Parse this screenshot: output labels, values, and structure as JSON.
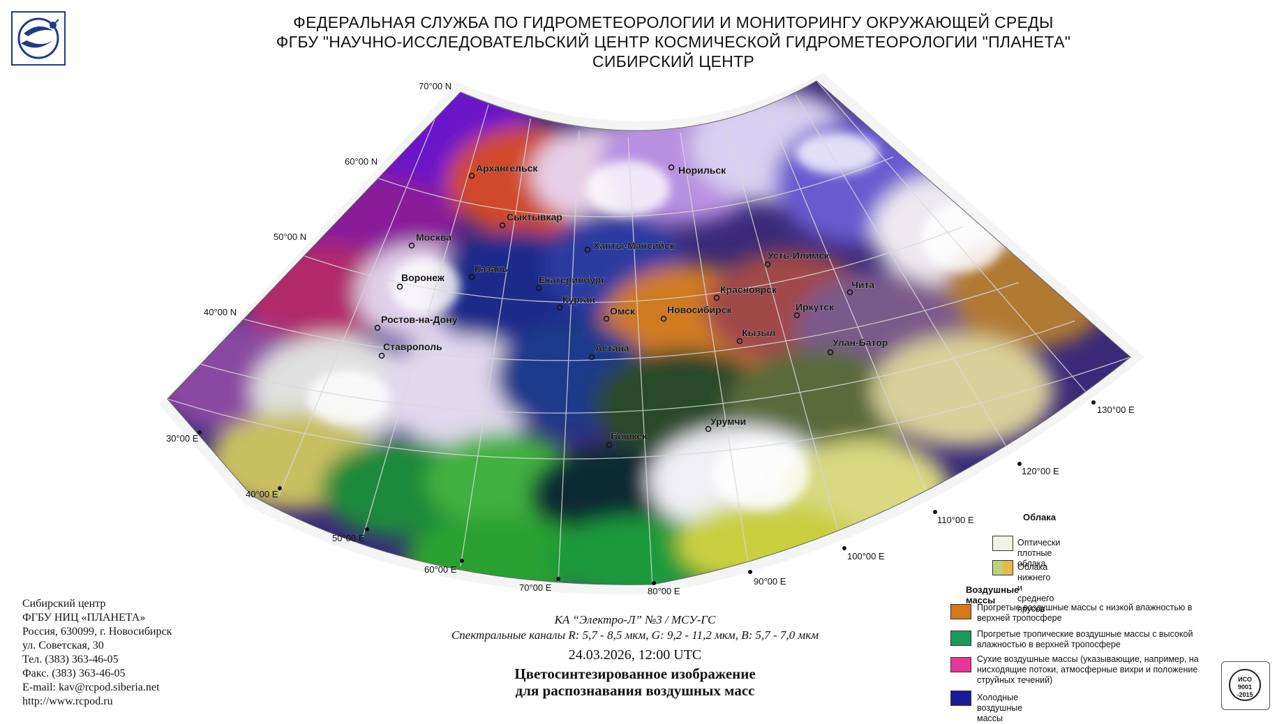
{
  "header": {
    "line1": "ФЕДЕРАЛЬНАЯ СЛУЖБА ПО ГИДРОМЕТЕОРОЛОГИИ И МОНИТОРИНГУ ОКРУЖАЮЩЕЙ СРЕДЫ",
    "line2": "ФГБУ \"НАУЧНО-ИССЛЕДОВАТЕЛЬСКИЙ ЦЕНТР КОСМИЧЕСКОЙ ГИДРОМЕТЕОРОЛОГИИ \"ПЛАНЕТА\"",
    "line3": "СИБИРСКИЙ ЦЕНТР"
  },
  "map": {
    "lat_labels": [
      "70°00 N",
      "60°00 N",
      "50°00 N",
      "40°00 N"
    ],
    "lon_labels": [
      "30°00 E",
      "40°00 E",
      "50°00 E",
      "60°00 E",
      "70°00 E",
      "80°00 E",
      "90°00 E",
      "100°00 E",
      "110°00 E",
      "120°00 E",
      "130°00 E"
    ],
    "cities": [
      "Архангельск",
      "Норильск",
      "Сыктывкар",
      "Москва",
      "Ханты-Мансийск",
      "Усть-Илимск",
      "Казань",
      "Воронеж",
      "Екатеринбург",
      "Красноярск",
      "Чита",
      "Курган",
      "Омск",
      "Новосибирск",
      "Иркутск",
      "Ростов-на-Дону",
      "Кызыл",
      "Ставрополь",
      "Астана",
      "Улан-Батор",
      "Урумчи",
      "Бишкек"
    ]
  },
  "address": {
    "l1": "Сибирский центр",
    "l2": "ФГБУ НИЦ «ПЛАНЕТА»",
    "l3": "Россия, 630099, г. Новосибирск",
    "l4": "ул. Советская, 30",
    "l5": "Тел. (383) 363-46-05",
    "l6": "Факс. (383) 363-46-05",
    "l7": "E-mail: kav@rcpod.siberia.net",
    "l8": "http://www.rcpod.ru"
  },
  "caption": {
    "satellite": "КА “Электро-Л” №3 / МСУ-ГС",
    "channels": "Спектральные каналы R: 5,7 - 8,5 мкм, G: 9,2 - 11,2 мкм, B: 5,7 - 7,0 мкм",
    "datetime": "24.03.2026, 12:00 UTC",
    "title1": "Цветосинтезированное изображение",
    "title2": "для распознавания воздушных масс"
  },
  "legend": {
    "clouds_title": "Облака",
    "dense_clouds": "Оптически плотные облака",
    "low_mid_clouds": "Облака нижнего и среднего ярусов",
    "air_title": "Воздушные массы",
    "warm_low": "Прогретые воздушные массы с низкой влажностью в верхней тропосфере",
    "warm_trop": "Прогретые тропичеcкие воздушные массы с высокой влажностью в верхней тропосфере",
    "dry": "Сухие воздушные массы (указывающие, например, на нисходящие потоки, атмосферные вихри и положение струйных течений)",
    "cold": "Холодные воздушные массы",
    "colors": {
      "dense_clouds": "#f2f2e4",
      "low_mid_a": "#b8d47a",
      "low_mid_b": "#e8b84a",
      "warm_low": "#d4781a",
      "warm_trop": "#1a9a5a",
      "dry": "#e8379a",
      "cold": "#1a1a9a"
    }
  },
  "cert": {
    "text": "ИСО 9001 -2015"
  }
}
